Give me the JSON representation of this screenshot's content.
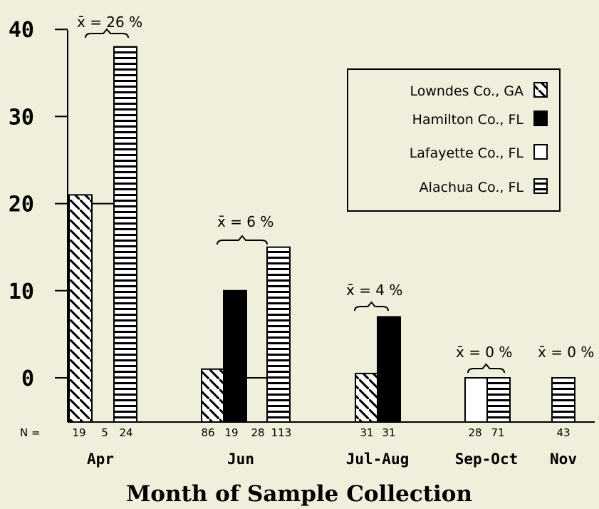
{
  "chart_data": {
    "type": "bar",
    "xlabel": "Month of Sample Collection",
    "ylabel": "",
    "ylim": [
      -5,
      40
    ],
    "yticks": [
      0,
      10,
      20,
      30,
      40
    ],
    "n_prefix": "N =",
    "legend": {
      "placement": "top-right",
      "entries": [
        {
          "label": "Lowndes Co., GA",
          "pattern": "diagonal-hatch"
        },
        {
          "label": "Hamilton Co., FL",
          "pattern": "solid-black"
        },
        {
          "label": "Lafayette Co., FL",
          "pattern": "empty"
        },
        {
          "label": "Alachua Co., FL",
          "pattern": "horizontal-hatch"
        }
      ]
    },
    "groups": [
      {
        "month": "Apr",
        "n_labels": [
          "19",
          "5",
          "24"
        ],
        "mean_label": "x̄ = 26 %",
        "bars": [
          {
            "series": "Lowndes Co., GA",
            "value": 21
          },
          {
            "series": "Alachua Co., FL",
            "value": 38
          }
        ]
      },
      {
        "month": "Jun",
        "n_labels": [
          "86",
          "19",
          "28",
          "113"
        ],
        "mean_label": "x̄ = 6 %",
        "bars": [
          {
            "series": "Lowndes Co., GA",
            "value": 1
          },
          {
            "series": "Hamilton Co., FL",
            "value": 10
          },
          {
            "series": "Alachua Co., FL",
            "value": 15
          }
        ]
      },
      {
        "month": "Jul-Aug",
        "n_labels": [
          "31",
          "31"
        ],
        "mean_label": "x̄ = 4 %",
        "bars": [
          {
            "series": "Lowndes Co., GA",
            "value": 0.5
          },
          {
            "series": "Hamilton Co., FL",
            "value": 7
          }
        ]
      },
      {
        "month": "Sep-Oct",
        "n_labels": [
          "28",
          "71"
        ],
        "mean_label": "x̄ = 0 %",
        "bars": [
          {
            "series": "Lafayette Co., FL",
            "value": 0
          },
          {
            "series": "Alachua Co., FL",
            "value": 0
          }
        ]
      },
      {
        "month": "Nov",
        "n_labels": [
          "43"
        ],
        "mean_label": "x̄ = 0 %",
        "bars": [
          {
            "series": "Alachua Co., FL",
            "value": 0
          }
        ]
      }
    ]
  }
}
